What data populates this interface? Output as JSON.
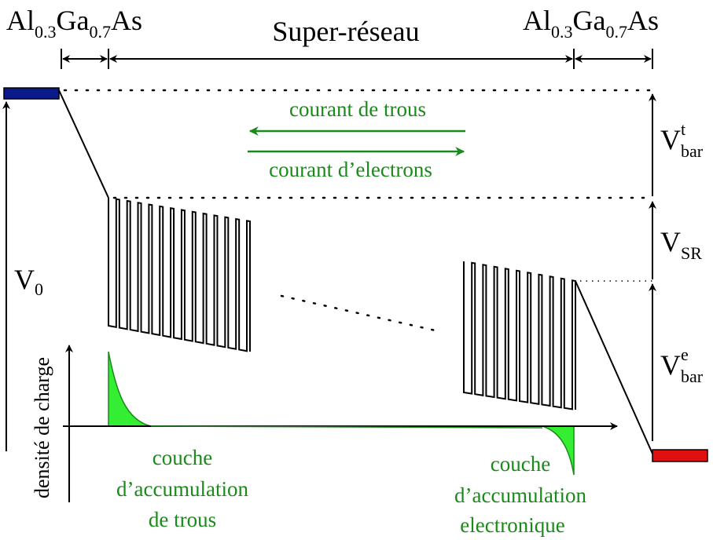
{
  "header": {
    "left_material": [
      "Al",
      "0.3",
      "Ga",
      "0.7",
      "As"
    ],
    "center_label": "Super-réseau",
    "right_material": [
      "Al",
      "0.3",
      "Ga",
      "0.7",
      "As"
    ]
  },
  "currents": {
    "holes": "courant de trous",
    "electrons": "courant d’electrons"
  },
  "potentials": {
    "v0": [
      "V",
      "0"
    ],
    "vbar_t": [
      "V",
      "t",
      "bar"
    ],
    "vsr": [
      "V",
      "SR"
    ],
    "vbar_e": [
      "V",
      "e",
      "bar"
    ]
  },
  "charge_axis_label": "densité de charge",
  "accumulation": {
    "holes": [
      "couche",
      "d’accumulation",
      "de trous"
    ],
    "electrons": [
      "couche",
      "d’accumulation",
      "electronique"
    ]
  }
}
